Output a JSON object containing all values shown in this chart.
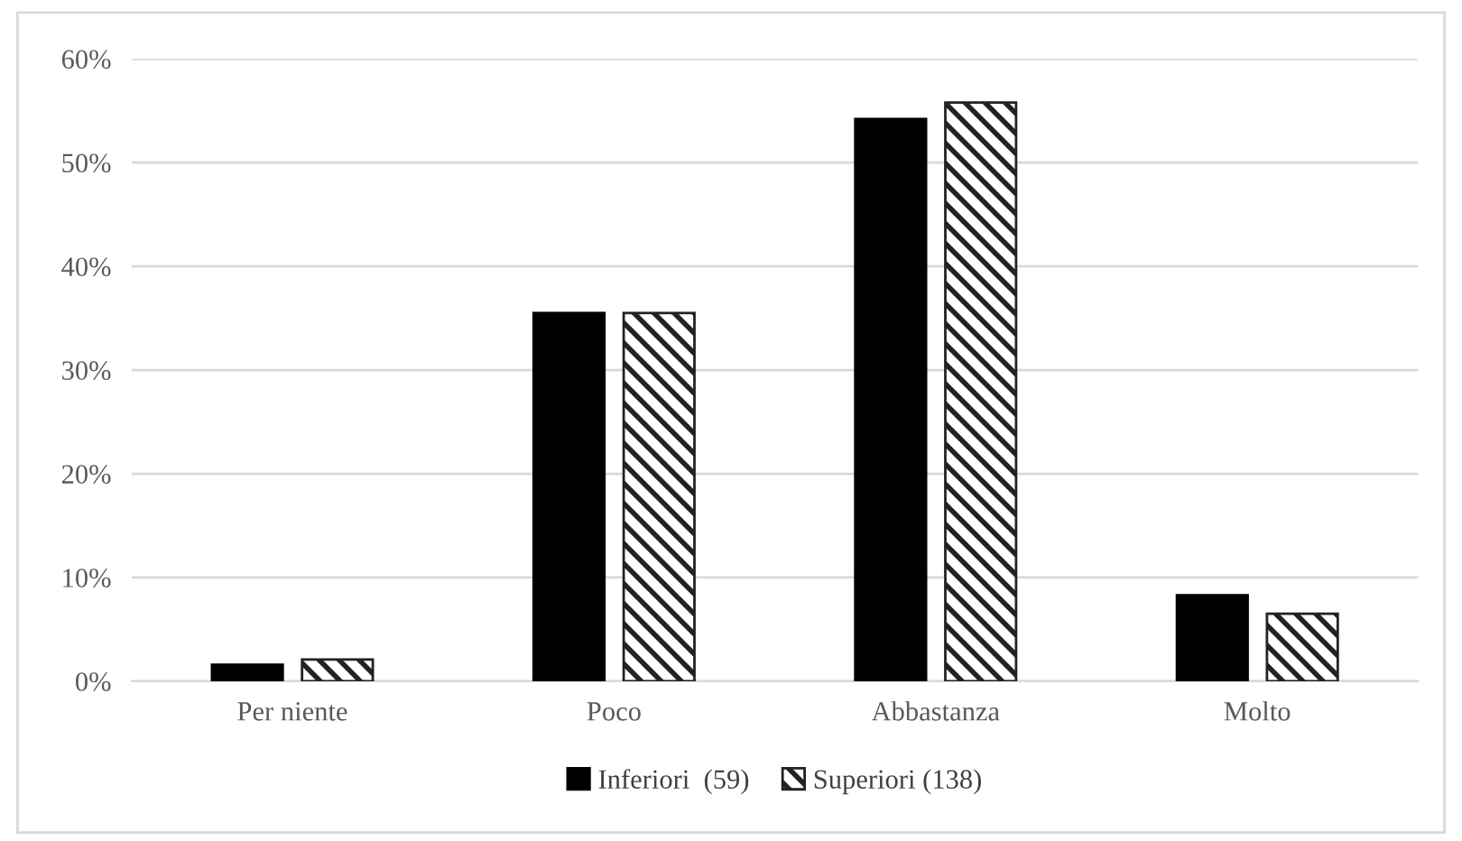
{
  "chart_data": {
    "type": "bar",
    "categories": [
      "Per niente",
      "Poco",
      "Abbastanza",
      "Molto"
    ],
    "series": [
      {
        "name": "Inferiori  (59)",
        "color": "#000000",
        "values": [
          1.6,
          35.5,
          54.2,
          8.3
        ]
      },
      {
        "name": "Superiori (138)",
        "color": "#222222",
        "values": [
          2.1,
          35.5,
          55.8,
          6.5
        ]
      }
    ],
    "ylim": [
      0,
      60
    ],
    "yticks": [
      {
        "value": 0,
        "label": "0%"
      },
      {
        "value": 10,
        "label": "10%"
      },
      {
        "value": 20,
        "label": "20%"
      },
      {
        "value": 30,
        "label": "30%"
      },
      {
        "value": 40,
        "label": "40%"
      },
      {
        "value": 50,
        "label": "50%"
      },
      {
        "value": 60,
        "label": "60%"
      }
    ],
    "grid": "y",
    "legend": "bottom"
  }
}
